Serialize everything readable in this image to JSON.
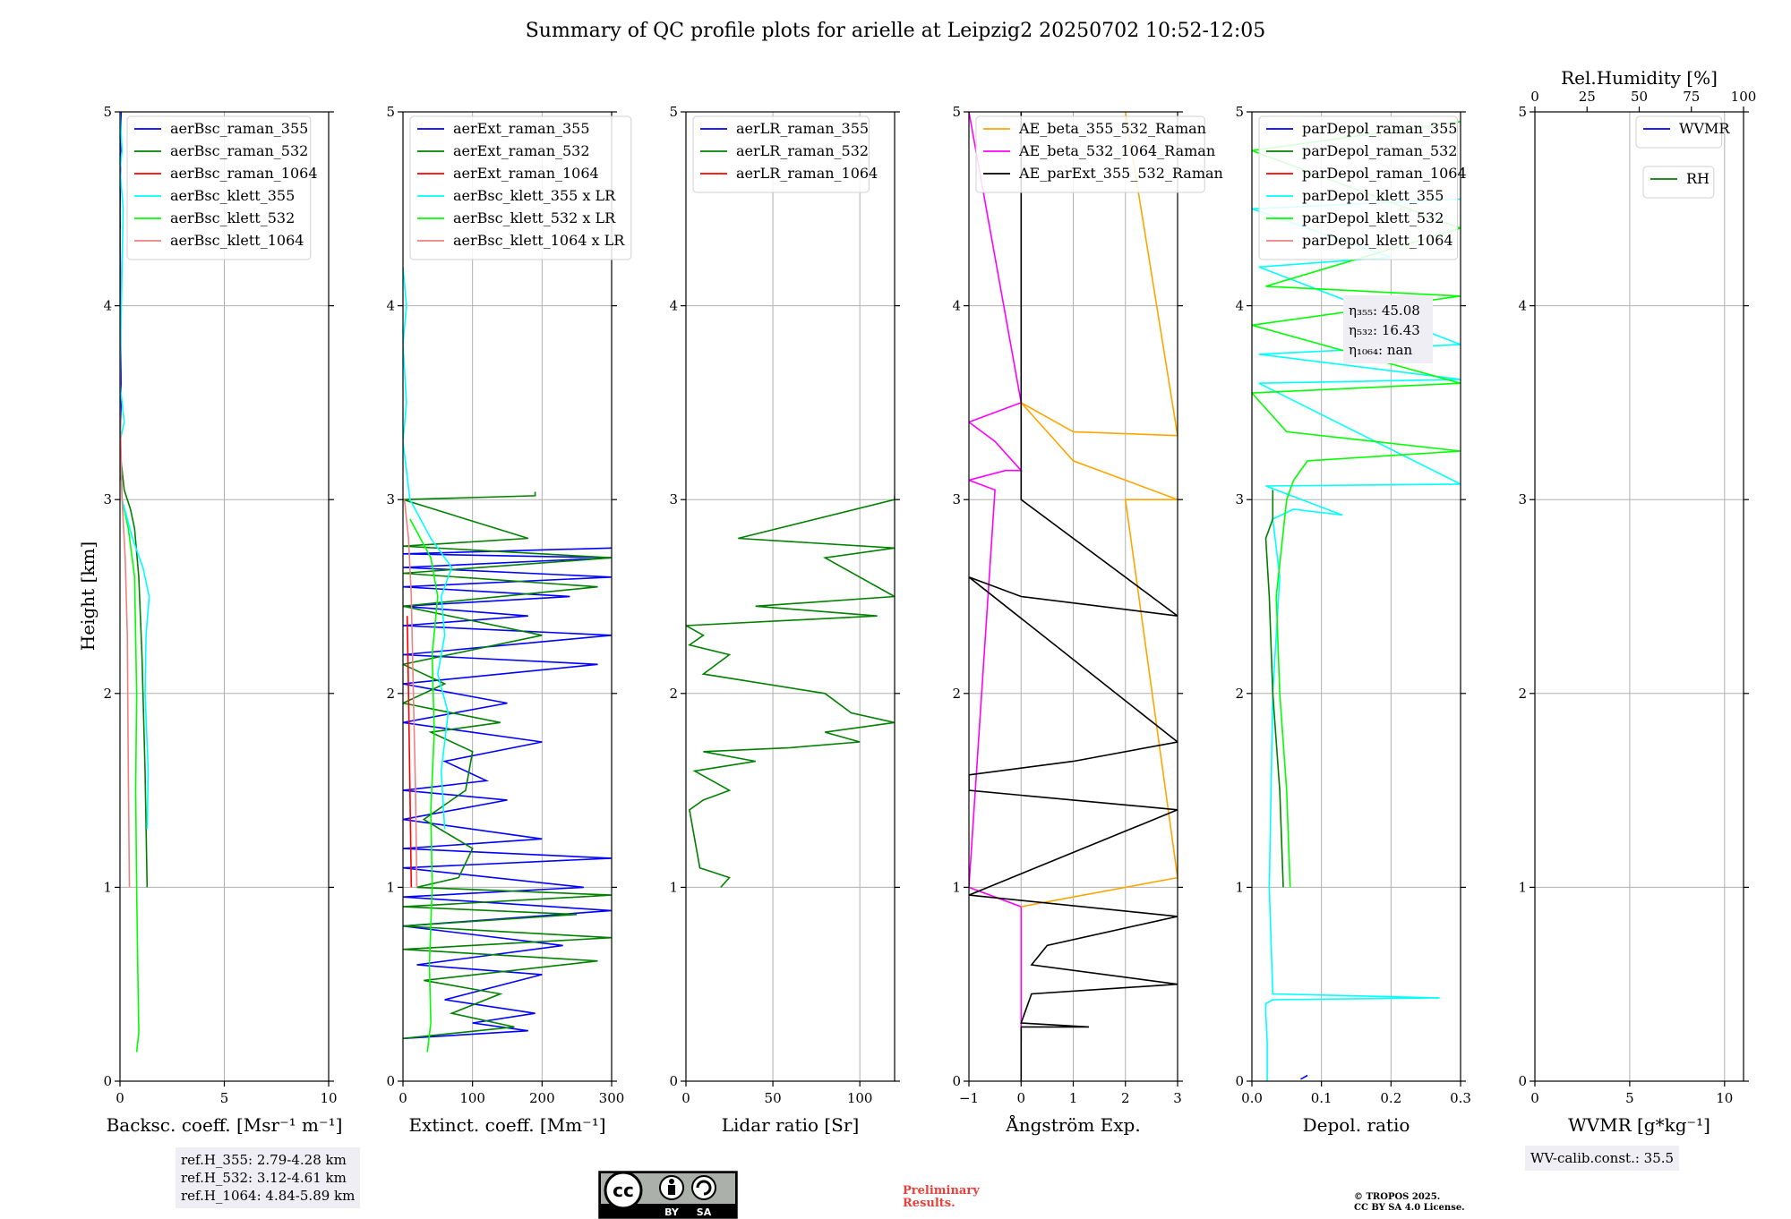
{
  "title": "Summary of QC profile plots for arielle at Leipzig2 20250702 10:52-12:05",
  "ylabel": "Height [km]",
  "colors": {
    "blue": "#0000ff",
    "green": "#008000",
    "red": "#ff0000",
    "cyan": "#00ffff",
    "lime": "#00ff00",
    "pink": "#f08080",
    "orange": "#ffa500",
    "magenta": "#ff00ff",
    "black": "#000000",
    "grid": "#b0b0b0"
  },
  "chart_data": [
    {
      "type": "line",
      "id": "bsc",
      "xlabel": "Backsc. coeff. [Msr⁻¹ m⁻¹]",
      "xlim": [
        0,
        10
      ],
      "ylim": [
        0,
        5
      ],
      "xticks": [
        0,
        5,
        10
      ],
      "xticklabels": [
        "0",
        "5",
        "10"
      ],
      "yticks": [
        0,
        1,
        2,
        3,
        4,
        5
      ],
      "legend": [
        "aerBsc_raman_355",
        "aerBsc_raman_532",
        "aerBsc_raman_1064",
        "aerBsc_klett_355",
        "aerBsc_klett_532",
        "aerBsc_klett_1064"
      ],
      "legend_colors": [
        "blue",
        "green",
        "red",
        "cyan",
        "lime",
        "pink"
      ],
      "series": [
        {
          "name": "aerBsc_raman_532",
          "color": "green",
          "x": [
            1.3,
            1.2,
            1.05,
            0.9,
            0.7,
            0.5,
            0.2,
            0.05
          ],
          "y": [
            1.0,
            1.6,
            2.2,
            2.6,
            2.85,
            2.95,
            3.05,
            3.2
          ]
        },
        {
          "name": "aerBsc_raman_355",
          "color": "blue",
          "x": [
            0.05,
            0.0,
            0.05,
            0.0,
            0.05
          ],
          "y": [
            3.1,
            3.3,
            3.5,
            4.5,
            5.0
          ]
        },
        {
          "name": "aerBsc_klett_532",
          "color": "lime",
          "x": [
            0.8,
            0.9,
            0.85,
            0.8,
            0.75,
            0.8,
            0.7,
            0.4,
            0.1
          ],
          "y": [
            0.15,
            0.25,
            0.6,
            1.0,
            1.5,
            2.0,
            2.6,
            2.85,
            3.0
          ]
        },
        {
          "name": "aerBsc_klett_355",
          "color": "cyan",
          "x": [
            1.3,
            1.35,
            1.2,
            1.25,
            1.4,
            1.1,
            0.6,
            0.1,
            0.0,
            0.2,
            0.0,
            0.15,
            0.0,
            0.1,
            0.0
          ],
          "y": [
            1.3,
            1.6,
            2.0,
            2.3,
            2.5,
            2.65,
            2.8,
            3.0,
            3.3,
            3.4,
            3.6,
            4.5,
            4.7,
            4.8,
            5.0
          ]
        },
        {
          "name": "aerBsc_klett_1064",
          "color": "pink",
          "x": [
            0.45,
            0.4,
            0.35,
            0.25,
            0.1,
            0.0,
            0.0
          ],
          "y": [
            1.0,
            1.6,
            2.3,
            2.7,
            3.0,
            3.5,
            4.4
          ]
        }
      ]
    },
    {
      "type": "line",
      "id": "ext",
      "xlabel": "Extinct. coeff. [Mm⁻¹]",
      "xlim": [
        0,
        300
      ],
      "ylim": [
        0,
        5
      ],
      "xticks": [
        0,
        100,
        200,
        300
      ],
      "xticklabels": [
        "0",
        "100",
        "200",
        "300"
      ],
      "yticks": [
        0,
        1,
        2,
        3,
        4,
        5
      ],
      "legend": [
        "aerExt_raman_355",
        "aerExt_raman_532",
        "aerExt_raman_1064",
        "aerBsc_klett_355 x LR",
        "aerBsc_klett_532 x LR",
        "aerBsc_klett_1064 x LR"
      ],
      "legend_colors": [
        "blue",
        "green",
        "red",
        "cyan",
        "lime",
        "pink"
      ],
      "series": [
        {
          "name": "aerExt_raman_355",
          "color": "blue",
          "x": [
            0,
            180,
            100,
            190,
            60,
            200,
            20,
            230,
            0,
            300,
            0,
            260,
            0,
            300,
            0,
            200,
            0,
            150,
            0,
            120,
            60,
            200,
            0,
            150,
            0,
            280,
            0,
            300,
            0,
            180,
            0,
            240,
            0,
            300,
            0,
            300,
            0,
            300
          ],
          "y": [
            0.22,
            0.26,
            0.3,
            0.35,
            0.42,
            0.55,
            0.6,
            0.7,
            0.8,
            0.88,
            0.95,
            1.0,
            1.1,
            1.15,
            1.2,
            1.25,
            1.35,
            1.45,
            1.5,
            1.55,
            1.65,
            1.75,
            1.85,
            1.95,
            2.05,
            2.15,
            2.2,
            2.3,
            2.35,
            2.4,
            2.45,
            2.5,
            2.55,
            2.6,
            2.65,
            2.7,
            2.72,
            2.75
          ]
        },
        {
          "name": "aerExt_raman_532",
          "color": "green",
          "x": [
            0,
            160,
            70,
            140,
            30,
            280,
            0,
            300,
            0,
            250,
            0,
            300,
            20,
            80,
            100,
            30,
            90,
            100,
            40,
            140,
            0,
            60,
            0,
            200,
            0,
            280,
            0,
            300,
            0,
            180,
            0,
            190,
            190
          ],
          "y": [
            0.22,
            0.28,
            0.35,
            0.45,
            0.52,
            0.62,
            0.68,
            0.74,
            0.8,
            0.86,
            0.9,
            0.96,
            1.0,
            1.05,
            1.2,
            1.35,
            1.5,
            1.7,
            1.8,
            1.85,
            1.95,
            2.05,
            2.15,
            2.3,
            2.45,
            2.55,
            2.62,
            2.7,
            2.76,
            2.8,
            3.0,
            3.02,
            3.04
          ]
        },
        {
          "name": "aerBsc_klett_532 x LR",
          "color": "lime",
          "x": [
            35,
            40,
            38,
            42,
            40,
            45,
            42,
            50,
            40,
            10
          ],
          "y": [
            0.15,
            0.3,
            0.6,
            1.0,
            1.4,
            1.8,
            2.2,
            2.5,
            2.7,
            2.9
          ]
        },
        {
          "name": "aerBsc_klett_355 x LR",
          "color": "cyan",
          "x": [
            60,
            55,
            65,
            50,
            60,
            55,
            70,
            40,
            10,
            0,
            5,
            0,
            5,
            0
          ],
          "y": [
            1.3,
            1.6,
            1.9,
            2.1,
            2.3,
            2.5,
            2.65,
            2.8,
            3.0,
            3.3,
            3.5,
            3.8,
            4.0,
            4.2
          ]
        },
        {
          "name": "aerBsc_klett_1064 x LR",
          "color": "pink",
          "x": [
            20,
            18,
            15,
            12,
            8,
            2
          ],
          "y": [
            1.0,
            1.5,
            2.0,
            2.5,
            2.8,
            3.0
          ]
        },
        {
          "name": "aerExt_raman_1064",
          "color": "red",
          "x": [
            12,
            10,
            8,
            6
          ],
          "y": [
            1.0,
            1.5,
            2.0,
            2.4
          ]
        }
      ]
    },
    {
      "type": "line",
      "id": "lr",
      "xlabel": "Lidar ratio [Sr]",
      "xlim": [
        0,
        120
      ],
      "ylim": [
        0,
        5
      ],
      "xticks": [
        0,
        50,
        100
      ],
      "xticklabels": [
        "0",
        "50",
        "100"
      ],
      "yticks": [
        0,
        1,
        2,
        3,
        4,
        5
      ],
      "legend": [
        "aerLR_raman_355",
        "aerLR_raman_532",
        "aerLR_raman_1064"
      ],
      "legend_colors": [
        "blue",
        "green",
        "red"
      ],
      "series": [
        {
          "name": "aerLR_raman_532",
          "color": "green",
          "x": [
            20,
            25,
            15,
            8,
            2,
            10,
            25,
            5,
            40,
            10,
            60,
            100,
            80,
            120,
            95,
            80,
            10,
            25,
            2,
            10,
            0,
            110,
            40,
            120,
            80,
            120,
            30,
            120,
            120
          ],
          "y": [
            1.0,
            1.05,
            1.08,
            1.1,
            1.4,
            1.45,
            1.5,
            1.6,
            1.65,
            1.7,
            1.72,
            1.75,
            1.8,
            1.85,
            1.9,
            2.0,
            2.1,
            2.2,
            2.25,
            2.3,
            2.35,
            2.4,
            2.45,
            2.5,
            2.7,
            2.75,
            2.8,
            3.0,
            3.02
          ]
        }
      ]
    },
    {
      "type": "line",
      "id": "ae",
      "xlabel": "Ångström Exp.",
      "xlim": [
        -1,
        3
      ],
      "ylim": [
        0,
        5
      ],
      "xticks": [
        -1,
        0,
        1,
        2,
        3
      ],
      "xticklabels": [
        "−1",
        "0",
        "1",
        "2",
        "3"
      ],
      "yticks": [
        0,
        1,
        2,
        3,
        4,
        5
      ],
      "legend": [
        "AE_beta_355_532_Raman",
        "AE_beta_532_1064_Raman",
        "AE_parExt_355_532_Raman"
      ],
      "legend_colors": [
        "orange",
        "magenta",
        "black"
      ],
      "series": [
        {
          "name": "AE_beta_532_1064_Raman",
          "color": "magenta",
          "x": [
            0,
            0,
            -1,
            -0.5,
            -1,
            -0.3,
            0,
            -0.5,
            -1,
            0,
            -1
          ],
          "y": [
            0.2,
            0.9,
            1.0,
            3.05,
            3.1,
            3.15,
            3.15,
            3.3,
            3.4,
            3.5,
            5.0
          ]
        },
        {
          "name": "AE_beta_355_532_Raman",
          "color": "orange",
          "x": [
            0,
            1,
            3,
            2,
            3,
            2,
            1,
            0,
            1,
            3,
            2
          ],
          "y": [
            0.9,
            0.95,
            1.05,
            3.0,
            3.0,
            3.1,
            3.2,
            3.5,
            3.35,
            3.33,
            5.0
          ]
        },
        {
          "name": "AE_parExt_355_532_Raman",
          "color": "black",
          "x": [
            0,
            0,
            1.3,
            0,
            0.2,
            3,
            0.2,
            0.5,
            3,
            -1,
            3,
            -1,
            -1,
            1,
            3,
            -1,
            0,
            3,
            0,
            0,
            0
          ],
          "y": [
            0,
            0.28,
            0.28,
            0.3,
            0.45,
            0.5,
            0.6,
            0.7,
            0.85,
            0.96,
            1.4,
            1.5,
            1.58,
            1.65,
            1.75,
            2.6,
            2.5,
            2.4,
            3.0,
            3.2,
            5.0
          ]
        }
      ]
    },
    {
      "type": "line",
      "id": "dep",
      "xlabel": "Depol. ratio",
      "xlim": [
        0,
        0.3
      ],
      "ylim": [
        0,
        5
      ],
      "xticks": [
        0,
        0.1,
        0.2,
        0.3
      ],
      "xticklabels": [
        "0.0",
        "0.1",
        "0.2",
        "0.3"
      ],
      "yticks": [
        0,
        1,
        2,
        3,
        4,
        5
      ],
      "legend": [
        "parDepol_raman_355",
        "parDepol_raman_532",
        "parDepol_raman_1064",
        "parDepol_klett_355",
        "parDepol_klett_532",
        "parDepol_klett_1064"
      ],
      "legend_colors": [
        "blue",
        "green",
        "red",
        "cyan",
        "lime",
        "pink"
      ],
      "annotation": [
        "η₃₅₅: 45.08",
        "η₅₃₂: 16.43",
        "η₁₀₆₄: nan"
      ],
      "series": [
        {
          "name": "parDepol_klett_355",
          "color": "cyan",
          "x": [
            0.022,
            0.022,
            0.02,
            0.02,
            0.03,
            0.27,
            0.03,
            0.025,
            0.03,
            0.04,
            0.03,
            0.06,
            0.13,
            0.02,
            0.3,
            0.01,
            0.3,
            0.01,
            0.3,
            0.01,
            0.2,
            0.0,
            0.3
          ],
          "y": [
            0.0,
            0.2,
            0.35,
            0.4,
            0.42,
            0.43,
            0.45,
            1.0,
            2.0,
            2.6,
            2.9,
            2.95,
            2.92,
            3.07,
            3.08,
            3.6,
            3.62,
            3.75,
            3.8,
            4.2,
            4.25,
            4.5,
            4.55
          ]
        },
        {
          "name": "parDepol_raman_532",
          "color": "green",
          "x": [
            0.045,
            0.04,
            0.03,
            0.025,
            0.02,
            0.03,
            0.03
          ],
          "y": [
            1.0,
            1.5,
            2.0,
            2.5,
            2.8,
            2.9,
            3.05
          ]
        },
        {
          "name": "parDepol_klett_532",
          "color": "lime",
          "x": [
            0.055,
            0.05,
            0.04,
            0.035,
            0.05,
            0.06,
            0.08,
            0.3,
            0.05,
            0.0,
            0.3,
            0.0,
            0.3,
            0.02,
            0.3,
            0.0,
            0.3
          ],
          "y": [
            1.0,
            1.5,
            2.0,
            2.5,
            3.0,
            3.1,
            3.2,
            3.25,
            3.35,
            3.55,
            3.6,
            3.9,
            4.05,
            4.1,
            4.4,
            4.8,
            4.95
          ]
        },
        {
          "name": "parDepol_raman_355",
          "color": "blue",
          "x": [
            0.07,
            0.075,
            0.08
          ],
          "y": [
            0.01,
            0.02,
            0.03
          ]
        }
      ]
    },
    {
      "type": "line",
      "id": "wv",
      "xlabel": "WVMR [g*kg⁻¹]",
      "top_xlabel": "Rel.Humidity [%]",
      "xlim": [
        0,
        11
      ],
      "ylim": [
        0,
        5
      ],
      "xticks": [
        0,
        5,
        10
      ],
      "xticklabels": [
        "0",
        "5",
        "10"
      ],
      "top_xticks": [
        0,
        25,
        50,
        75,
        100
      ],
      "top_xticklabels": [
        "0",
        "25",
        "50",
        "75",
        "100"
      ],
      "yticks": [
        0,
        1,
        2,
        3,
        4,
        5
      ],
      "legend": [
        "WVMR"
      ],
      "legend_colors": [
        "blue"
      ],
      "legend2": [
        "RH"
      ],
      "legend2_colors": [
        "green"
      ],
      "series": []
    }
  ],
  "ref_box": [
    "ref.H_355: 2.79-4.28 km",
    "ref.H_532: 3.12-4.61 km",
    "ref.H_1064: 4.84-5.89 km"
  ],
  "wv_calib": "WV-calib.const.: 35.5",
  "cc_badge": {
    "cc": "cc",
    "by": "BY",
    "sa": "SA"
  },
  "prelim": [
    "Preliminary",
    "Results."
  ],
  "copyright": [
    "© TROPOS 2025.",
    "CC BY SA 4.0 License."
  ]
}
